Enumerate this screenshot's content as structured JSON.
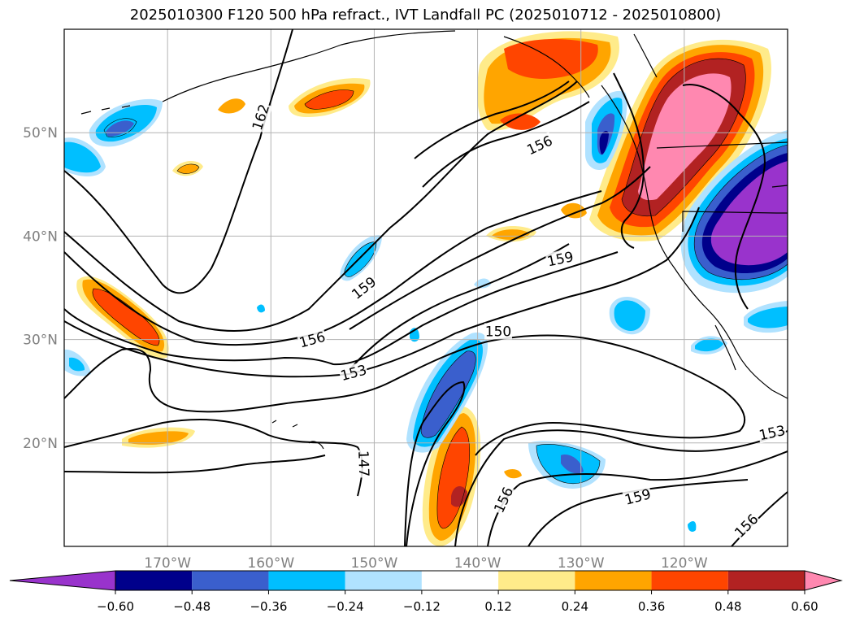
{
  "title": "2025010300 F120 500 hPa refract., IVT Landfall PC (2025010712 - 2025010800)",
  "map": {
    "projection": "cylindrical",
    "lon_range": [
      -180,
      -110
    ],
    "lat_range": [
      10,
      60
    ],
    "lat_ticks": [
      {
        "value": 20,
        "label": "20°N"
      },
      {
        "value": 30,
        "label": "30°N"
      },
      {
        "value": 40,
        "label": "40°N"
      },
      {
        "value": 50,
        "label": "50°N"
      }
    ],
    "lon_ticks": [
      {
        "value": -170,
        "label": "170°W"
      },
      {
        "value": -160,
        "label": "160°W"
      },
      {
        "value": -150,
        "label": "150°W"
      },
      {
        "value": -140,
        "label": "140°W"
      },
      {
        "value": -130,
        "label": "130°W"
      },
      {
        "value": -120,
        "label": "120°W"
      }
    ],
    "grid": true,
    "tick_color": "#808080"
  },
  "contour_labels": [
    {
      "text": "162",
      "lon": -161,
      "lat": 51.5,
      "angle": -72
    },
    {
      "text": "156",
      "lon": -134,
      "lat": 48.8,
      "angle": -25
    },
    {
      "text": "159",
      "lon": -132,
      "lat": 37.8,
      "angle": -12
    },
    {
      "text": "159",
      "lon": -151,
      "lat": 35.0,
      "angle": -38
    },
    {
      "text": "156",
      "lon": -156,
      "lat": 30.0,
      "angle": -15
    },
    {
      "text": "153",
      "lon": -152,
      "lat": 26.8,
      "angle": -15
    },
    {
      "text": "150",
      "lon": -138,
      "lat": 30.8,
      "angle": 0
    },
    {
      "text": "147",
      "lon": -151,
      "lat": 18.0,
      "angle": 88
    },
    {
      "text": "156",
      "lon": -137.5,
      "lat": 14.5,
      "angle": -65
    },
    {
      "text": "159",
      "lon": -124.5,
      "lat": 14.8,
      "angle": -15
    },
    {
      "text": "153",
      "lon": -111.5,
      "lat": 21.0,
      "angle": -12
    },
    {
      "text": "156",
      "lon": -114,
      "lat": 12.0,
      "angle": -45
    }
  ],
  "colorbar": {
    "colors": [
      "#9933cc",
      "#00008b",
      "#3a5fcd",
      "#00bfff",
      "#b0e2ff",
      "#ffffff",
      "#ffeb8a",
      "#ffa500",
      "#ff4500",
      "#b22222",
      "#ff88b0"
    ],
    "tick_labels": [
      "−0.60",
      "−0.48",
      "−0.36",
      "−0.24",
      "−0.12",
      "0.12",
      "0.24",
      "0.36",
      "0.48",
      "0.60"
    ],
    "extend": "both"
  }
}
